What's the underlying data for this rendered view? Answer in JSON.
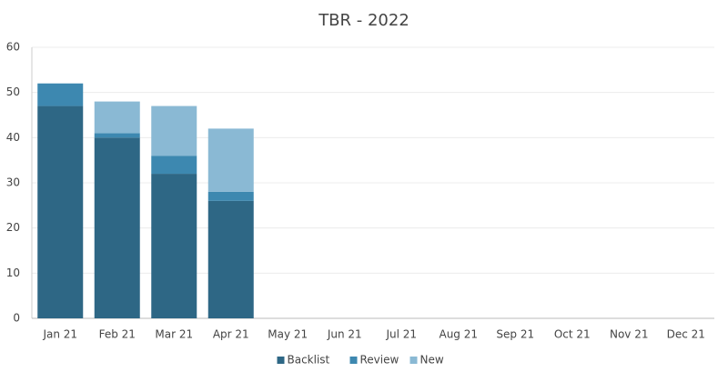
{
  "chart_data": {
    "type": "stacked_bar",
    "title": "TBR - 2022",
    "categories": [
      "Jan 21",
      "Feb 21",
      "Mar 21",
      "Apr 21",
      "May 21",
      "Jun 21",
      "Jul 21",
      "Aug 21",
      "Sep 21",
      "Oct 21",
      "Nov 21",
      "Dec 21"
    ],
    "series": [
      {
        "name": "Backlist",
        "color": "#2e6785",
        "values": [
          47,
          40,
          32,
          26,
          null,
          null,
          null,
          null,
          null,
          null,
          null,
          null
        ]
      },
      {
        "name": "Review",
        "color": "#3d88b0",
        "values": [
          5,
          1,
          4,
          2,
          null,
          null,
          null,
          null,
          null,
          null,
          null,
          null
        ]
      },
      {
        "name": "New",
        "color": "#8ab9d4",
        "values": [
          0,
          7,
          11,
          14,
          null,
          null,
          null,
          null,
          null,
          null,
          null,
          null
        ]
      }
    ],
    "ylim": [
      0,
      60
    ],
    "yticks": [
      0,
      10,
      20,
      30,
      40,
      50,
      60
    ],
    "grid": true,
    "legend": "bottom"
  }
}
